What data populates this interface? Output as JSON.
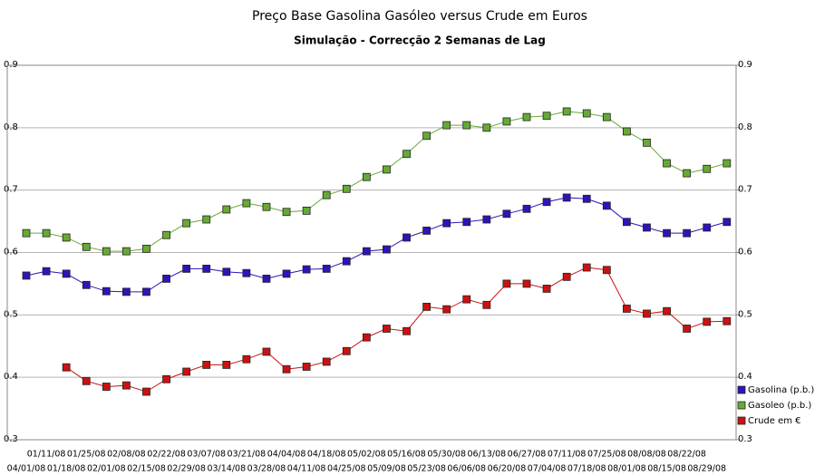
{
  "chart_data": {
    "type": "line",
    "title": "Preço Base Gasolina Gasóleo versus Crude em Euros",
    "subtitle": "Simulação - Correcção 2 Semanas de Lag",
    "categories": [
      "04/01/08",
      "01/11/08",
      "01/18/08",
      "01/25/08",
      "02/01/08",
      "02/08/08",
      "02/15/08",
      "02/22/08",
      "02/29/08",
      "03/07/08",
      "03/14/08",
      "03/21/08",
      "03/28/08",
      "04/04/08",
      "04/11/08",
      "04/18/08",
      "04/25/08",
      "05/02/08",
      "05/09/08",
      "05/16/08",
      "05/23/08",
      "05/30/08",
      "06/06/08",
      "06/13/08",
      "06/20/08",
      "06/27/08",
      "07/04/08",
      "07/11/08",
      "07/18/08",
      "07/25/08",
      "08/01/08",
      "08/08/08",
      "08/15/08",
      "08/22/08",
      "08/29/08",
      null
    ],
    "series": [
      {
        "name": "Gasolina (p.b.)",
        "color": "#3311bb",
        "values": [
          0.563,
          0.57,
          0.566,
          0.548,
          0.538,
          0.537,
          0.537,
          0.558,
          0.574,
          0.574,
          0.569,
          0.567,
          0.558,
          0.566,
          0.573,
          0.574,
          0.586,
          0.602,
          0.605,
          0.624,
          0.635,
          0.647,
          0.649,
          0.653,
          0.662,
          0.67,
          0.681,
          0.688,
          0.686,
          0.675,
          0.649,
          0.64,
          0.631,
          0.631,
          0.64,
          0.649
        ]
      },
      {
        "name": "Gasoleo (p.b.)",
        "color": "#66aa33",
        "values": [
          0.631,
          0.631,
          0.624,
          0.609,
          0.602,
          0.602,
          0.606,
          0.628,
          0.647,
          0.653,
          0.669,
          0.679,
          0.673,
          0.665,
          0.667,
          0.692,
          0.702,
          0.721,
          0.733,
          0.758,
          0.787,
          0.804,
          0.804,
          0.8,
          0.81,
          0.817,
          0.819,
          0.826,
          0.823,
          0.817,
          0.794,
          0.776,
          0.743,
          0.727,
          0.734,
          0.743
        ]
      },
      {
        "name": "Crude em €",
        "color": "#cc1111",
        "values": [
          null,
          null,
          0.416,
          0.394,
          0.385,
          0.387,
          0.377,
          0.397,
          0.409,
          0.42,
          0.42,
          0.429,
          0.441,
          0.413,
          0.417,
          0.425,
          0.442,
          0.464,
          0.478,
          0.474,
          0.513,
          0.509,
          0.525,
          0.516,
          0.55,
          0.55,
          0.542,
          0.561,
          0.576,
          0.572,
          0.51,
          0.502,
          0.506,
          0.478,
          0.489,
          0.49
        ]
      }
    ],
    "ylim": [
      0.3,
      0.9
    ],
    "yticks": [
      0.3,
      0.4,
      0.5,
      0.6,
      0.7,
      0.8,
      0.9
    ],
    "y2lim": [
      0.3,
      0.9
    ],
    "y2ticks": [
      0.3,
      0.4,
      0.5,
      0.6,
      0.7,
      0.8,
      0.9
    ],
    "grid": true,
    "legend": "right"
  }
}
